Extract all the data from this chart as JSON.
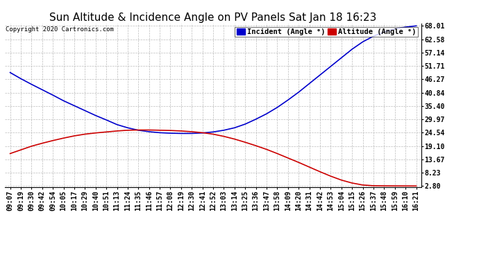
{
  "title": "Sun Altitude & Incidence Angle on PV Panels Sat Jan 18 16:23",
  "copyright": "Copyright 2020 Cartronics.com",
  "legend_incident": "Incident (Angle °)",
  "legend_altitude": "Altitude (Angle °)",
  "yticks": [
    2.8,
    8.23,
    13.67,
    19.1,
    24.54,
    29.97,
    35.4,
    40.84,
    46.27,
    51.71,
    57.14,
    62.58,
    68.01
  ],
  "xtick_labels": [
    "09:07",
    "09:19",
    "09:30",
    "09:42",
    "09:54",
    "10:05",
    "10:17",
    "10:29",
    "10:40",
    "10:51",
    "11:13",
    "11:24",
    "11:35",
    "11:46",
    "11:57",
    "12:08",
    "12:19",
    "12:30",
    "12:41",
    "12:52",
    "13:03",
    "13:14",
    "13:25",
    "13:36",
    "13:47",
    "13:58",
    "14:09",
    "14:20",
    "14:31",
    "14:42",
    "14:53",
    "15:04",
    "15:15",
    "15:26",
    "15:37",
    "15:48",
    "15:59",
    "16:10",
    "16:21"
  ],
  "blue_y": [
    49.0,
    46.5,
    44.2,
    42.0,
    39.8,
    37.5,
    35.5,
    33.5,
    31.5,
    29.7,
    27.8,
    26.5,
    25.5,
    24.9,
    24.5,
    24.3,
    24.2,
    24.2,
    24.4,
    24.8,
    25.5,
    26.5,
    28.0,
    30.0,
    32.2,
    34.8,
    37.8,
    41.0,
    44.5,
    48.0,
    51.5,
    55.0,
    58.5,
    61.5,
    63.8,
    65.5,
    66.8,
    67.5,
    68.01
  ],
  "red_y": [
    16.0,
    17.5,
    19.0,
    20.2,
    21.3,
    22.3,
    23.2,
    23.9,
    24.4,
    24.8,
    25.2,
    25.5,
    25.6,
    25.6,
    25.5,
    25.4,
    25.2,
    24.9,
    24.5,
    23.9,
    23.0,
    21.9,
    20.6,
    19.2,
    17.7,
    16.0,
    14.2,
    12.4,
    10.5,
    8.6,
    6.8,
    5.2,
    4.0,
    3.2,
    2.9,
    2.85,
    2.82,
    2.81,
    2.8
  ],
  "ymin": 2.8,
  "ymax": 68.01,
  "bg_color": "#ffffff",
  "plot_bg_color": "#ffffff",
  "grid_color": "#bbbbbb",
  "blue_color": "#0000cc",
  "red_color": "#cc0000",
  "title_fontsize": 11,
  "tick_fontsize": 7,
  "legend_fontsize": 7.5
}
